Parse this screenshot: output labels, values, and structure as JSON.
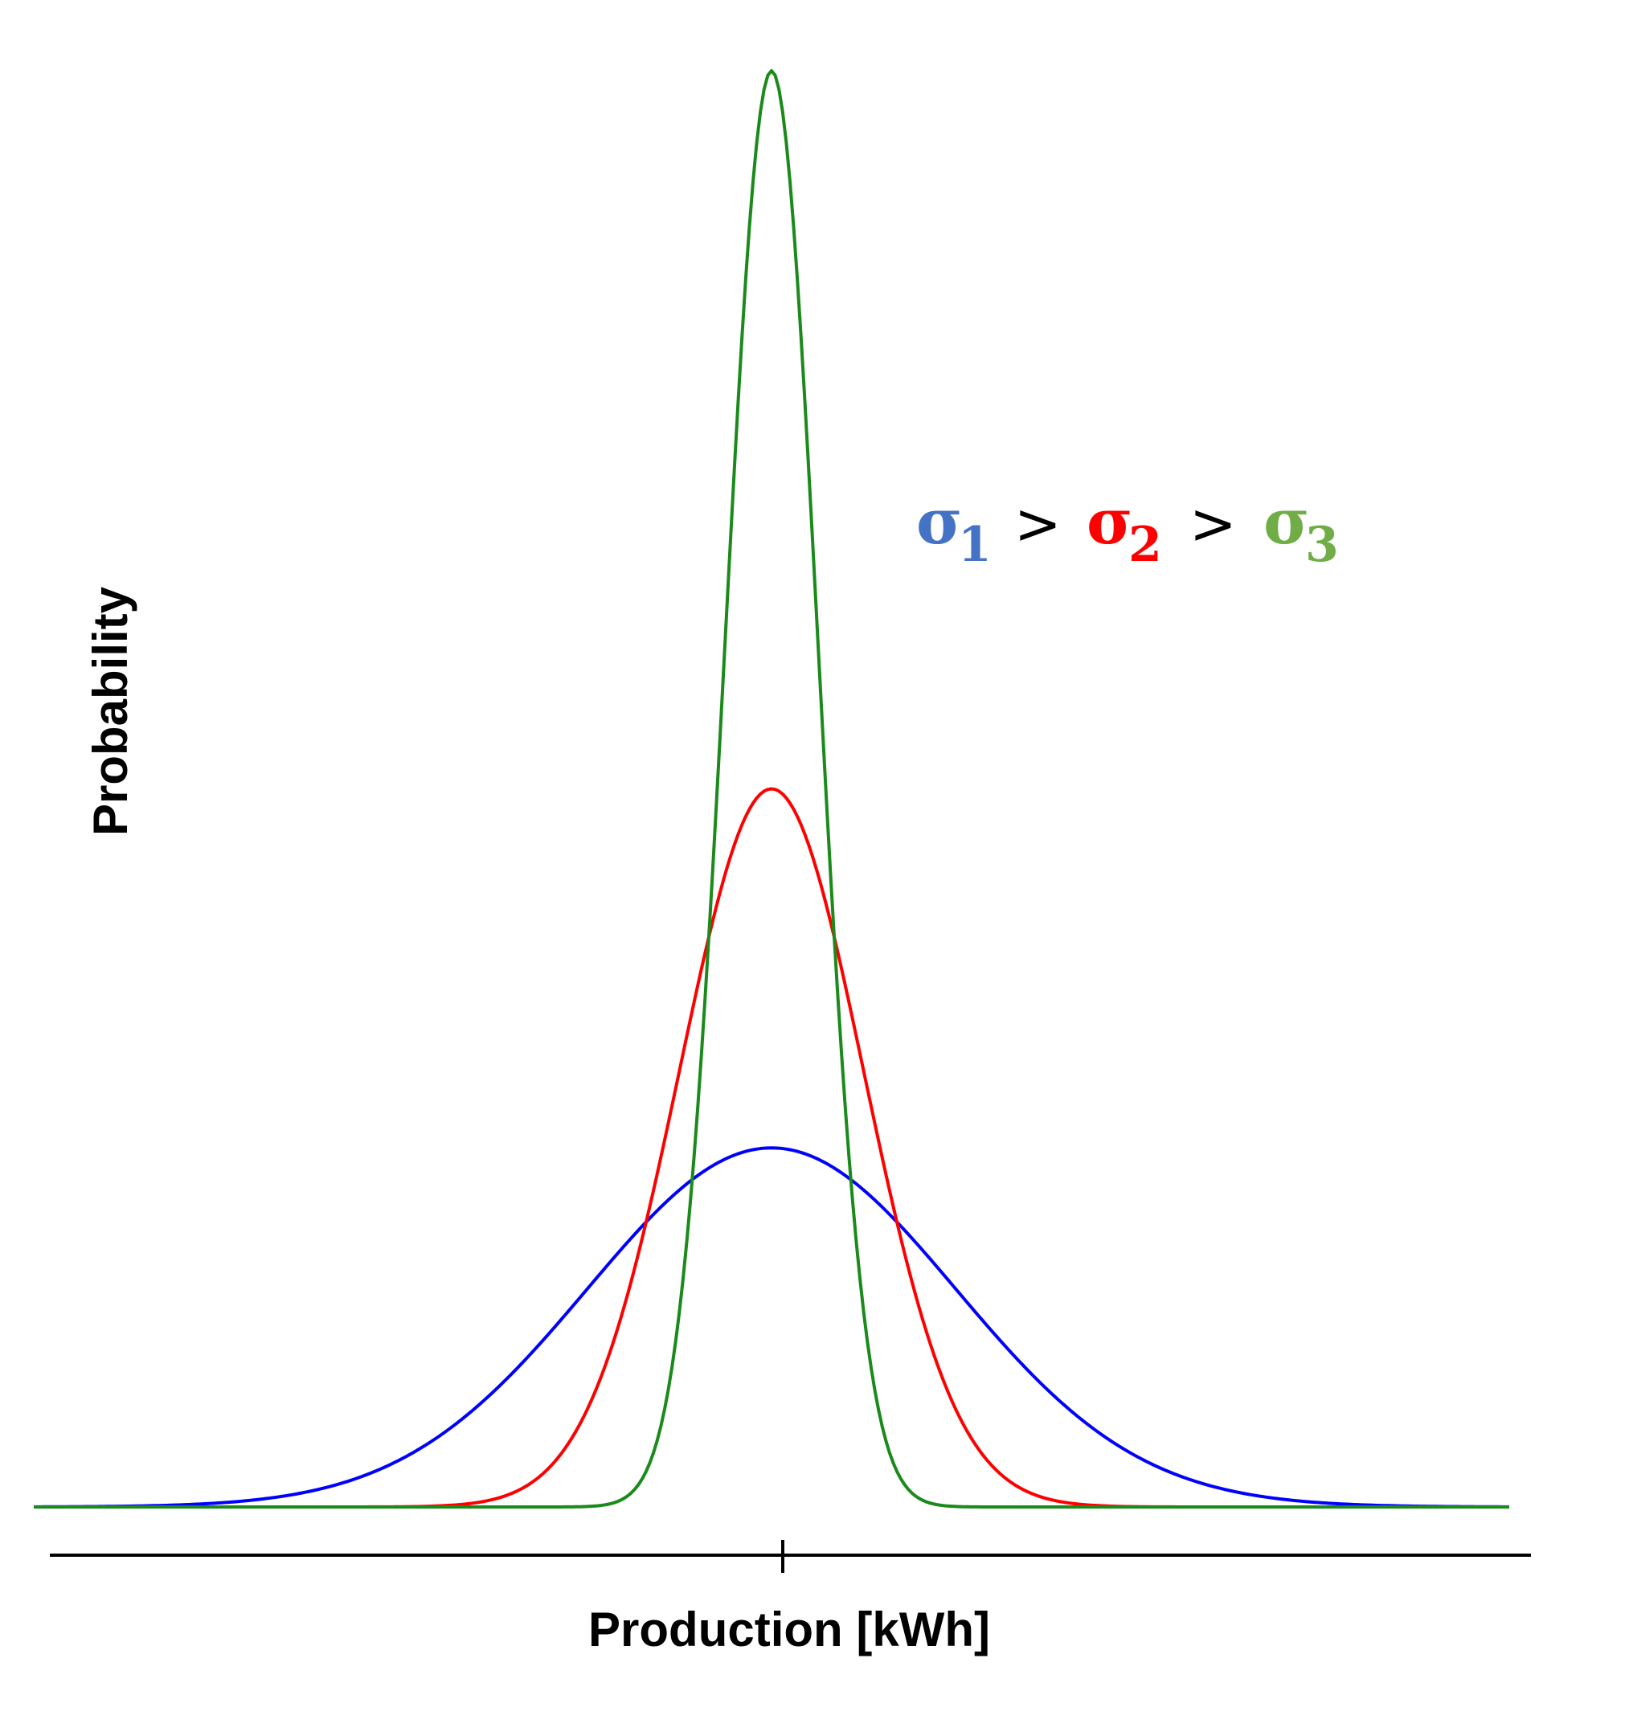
{
  "chart_data": {
    "type": "line",
    "title": "",
    "xlabel": "Production [kWh]",
    "ylabel": "Probability",
    "x_range": [
      -4,
      4
    ],
    "x_ticks": [
      0
    ],
    "y_ticks": [],
    "grid": false,
    "legend": null,
    "series": [
      {
        "color": "#0000ff",
        "mean": 0,
        "sigma": 1.0,
        "peak_relative": 0.25,
        "x": [
          -4,
          -3,
          -2,
          -1.5,
          -1,
          -0.5,
          0,
          0.5,
          1,
          1.5,
          2,
          3,
          4
        ],
        "y": [
          0.008,
          0.028,
          0.085,
          0.128,
          0.163,
          0.185,
          0.19,
          0.185,
          0.163,
          0.128,
          0.085,
          0.028,
          0.008
        ]
      },
      {
        "color": "#ff0000",
        "mean": 0,
        "sigma": 0.5,
        "peak_relative": 0.5,
        "x": [
          -4,
          -2,
          -1.5,
          -1,
          -0.5,
          0,
          0.5,
          1,
          1.5,
          2,
          4
        ],
        "y": [
          0.0,
          0.013,
          0.043,
          0.104,
          0.234,
          0.45,
          0.234,
          0.104,
          0.043,
          0.013,
          0.0
        ]
      },
      {
        "color": "#1a8a1a",
        "mean": 0,
        "sigma": 0.25,
        "peak_relative": 1.0,
        "x": [
          -4,
          -1,
          -0.75,
          -0.5,
          -0.25,
          0,
          0.25,
          0.5,
          0.75,
          1,
          4
        ],
        "y": [
          0.0,
          0.0,
          0.007,
          0.122,
          0.546,
          0.9,
          0.546,
          0.122,
          0.007,
          0.0,
          0.0
        ]
      }
    ],
    "annotation": {
      "parts": [
        {
          "text": "σ",
          "sub": "1",
          "color": "#4472c4"
        },
        {
          "text": ">",
          "sub": "",
          "color": "#000000"
        },
        {
          "text": "σ",
          "sub": "2",
          "color": "#ff0000"
        },
        {
          "text": ">",
          "sub": "",
          "color": "#000000"
        },
        {
          "text": "σ",
          "sub": "3",
          "color": "#70ad47"
        }
      ]
    }
  }
}
